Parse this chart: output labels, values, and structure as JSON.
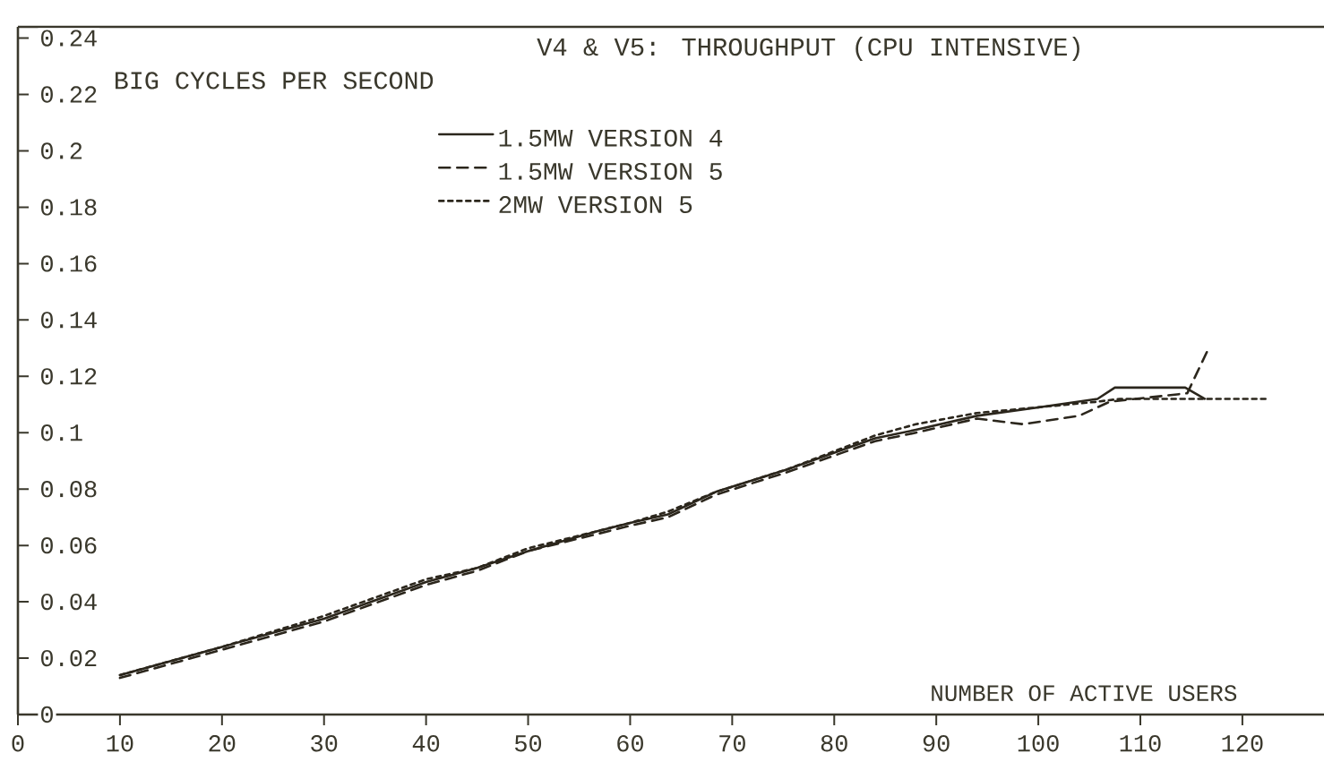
{
  "chart_data": {
    "type": "line",
    "title": "V4 & V5: THROUGHPUT (CPU INTENSIVE)",
    "ylabel": "BIG CYCLES PER SECOND",
    "xlabel": "NUMBER OF ACTIVE USERS",
    "xlim": [
      0,
      128
    ],
    "xticks": [
      0,
      10,
      20,
      30,
      40,
      50,
      60,
      70,
      80,
      90,
      100,
      110,
      120
    ],
    "ylim": [
      0,
      0.244
    ],
    "yticks": [
      0,
      0.02,
      0.04,
      0.06,
      0.08,
      0.1,
      0.12,
      0.14,
      0.16,
      0.18,
      0.2,
      0.22,
      0.24
    ],
    "legend": "top",
    "series": [
      {
        "name": "1.5MW VERSION 4",
        "color": "#2b261c",
        "line_style": "solid",
        "x": [
          10,
          20,
          30,
          40,
          45,
          50,
          56.7,
          60,
          63.7,
          68.4,
          75.4,
          84,
          88,
          94,
          100,
          105.8,
          107.5,
          114.4,
          116.3
        ],
        "values": [
          0.014,
          0.024,
          0.034,
          0.047,
          0.052,
          0.058,
          0.065,
          0.068,
          0.071,
          0.079,
          0.087,
          0.098,
          0.101,
          0.106,
          0.109,
          0.112,
          0.116,
          0.116,
          0.112
        ]
      },
      {
        "name": "1.5MW VERSION 5",
        "color": "#2b261c",
        "line_style": "dashed",
        "x": [
          10,
          20,
          30,
          40,
          45,
          50,
          56.7,
          60,
          63.7,
          68.4,
          75.4,
          84,
          88,
          94,
          98.5,
          104,
          107,
          114.6,
          116.7
        ],
        "values": [
          0.013,
          0.023,
          0.033,
          0.046,
          0.051,
          0.058,
          0.064,
          0.067,
          0.07,
          0.078,
          0.086,
          0.097,
          0.1,
          0.105,
          0.103,
          0.106,
          0.111,
          0.114,
          0.13
        ]
      },
      {
        "name": "2MW VERSION 5",
        "color": "#2b261c",
        "line_style": "dotted",
        "x": [
          10,
          20,
          30,
          40,
          45,
          50,
          56.7,
          60,
          63.7,
          68.4,
          75.4,
          84,
          88,
          94,
          100,
          105.8,
          108,
          122.5
        ],
        "values": [
          0.014,
          0.024,
          0.035,
          0.048,
          0.052,
          0.059,
          0.065,
          0.068,
          0.072,
          0.079,
          0.087,
          0.099,
          0.103,
          0.107,
          0.109,
          0.111,
          0.112,
          0.112
        ]
      }
    ]
  }
}
